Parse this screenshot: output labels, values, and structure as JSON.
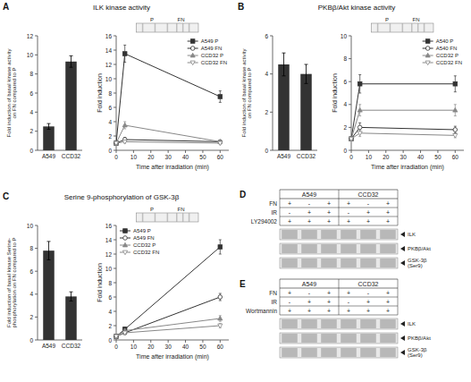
{
  "chart_data": [
    {
      "type": "bar",
      "title": "ILK kinase activity",
      "annotations": [
        "A"
      ],
      "categories": [
        "A549",
        "CCD32"
      ],
      "values": [
        2.5,
        9.3
      ],
      "errors": [
        0.3,
        0.6
      ],
      "color": "#333333",
      "ylabel": "Fold induction of basal kinase activity\non FN compared to P",
      "ylim": [
        0,
        12
      ],
      "yticks": [
        0,
        2,
        4,
        6,
        8,
        10,
        12
      ]
    },
    {
      "type": "line",
      "xlabel": "Time after irradiation (min)",
      "ylabel": "Fold induction",
      "annotations": [
        "P",
        "FN"
      ],
      "x": [
        0,
        5,
        60
      ],
      "xlim": [
        0,
        65
      ],
      "xticks": [
        0,
        10,
        20,
        30,
        40,
        50,
        60
      ],
      "ylim": [
        0,
        16
      ],
      "yticks": [
        0,
        2,
        4,
        6,
        8,
        10,
        12,
        14,
        16
      ],
      "legend": "upper right",
      "series": [
        {
          "name": "A549 P",
          "color": "#333333",
          "marker": "square",
          "line_style": "solid",
          "values": [
            1.0,
            13.5,
            7.5
          ],
          "errors": [
            0.0,
            1.2,
            0.8
          ]
        },
        {
          "name": "A549 FN",
          "color": "#333333",
          "marker": "open-circle",
          "line_style": "solid",
          "values": [
            1.0,
            1.5,
            1.2
          ],
          "errors": [
            0.0,
            0.3,
            0.2
          ]
        },
        {
          "name": "CCD32 P",
          "color": "#888888",
          "marker": "triangle-up",
          "line_style": "solid",
          "values": [
            1.0,
            3.5,
            1.2
          ],
          "errors": [
            0.0,
            0.5,
            0.2
          ]
        },
        {
          "name": "CCD32 FN",
          "color": "#888888",
          "marker": "open-triangle-down",
          "line_style": "solid",
          "values": [
            1.0,
            1.2,
            1.0
          ],
          "errors": [
            0.0,
            0.2,
            0.2
          ]
        }
      ]
    },
    {
      "type": "bar",
      "title": "PKBβ/Akt kinase activity",
      "annotations": [
        "B"
      ],
      "categories": [
        "A549",
        "CCD32"
      ],
      "values": [
        4.5,
        4.0
      ],
      "errors": [
        0.6,
        0.5
      ],
      "color": "#333333",
      "ylabel": "Fold induction of basal kinase activity\non FN compared to P",
      "ylim": [
        0,
        6
      ],
      "yticks": [
        0,
        2,
        4,
        6
      ]
    },
    {
      "type": "line",
      "xlabel": "Time after irradiation (min)",
      "ylabel": "Fold induction",
      "annotations": [
        "P",
        "FN"
      ],
      "x": [
        0,
        5,
        60
      ],
      "xlim": [
        0,
        65
      ],
      "xticks": [
        0,
        10,
        20,
        30,
        40,
        50,
        60
      ],
      "ylim": [
        0,
        10
      ],
      "yticks": [
        0,
        2,
        4,
        6,
        8,
        10
      ],
      "legend": "upper right",
      "series": [
        {
          "name": "A540 P",
          "color": "#333333",
          "marker": "square",
          "line_style": "solid",
          "values": [
            1.0,
            5.8,
            5.8
          ],
          "errors": [
            0.0,
            0.8,
            0.7
          ]
        },
        {
          "name": "A540 FN",
          "color": "#333333",
          "marker": "open-circle",
          "line_style": "solid",
          "values": [
            1.0,
            2.0,
            1.8
          ],
          "errors": [
            0.0,
            0.4,
            0.3
          ]
        },
        {
          "name": "CCD32 P",
          "color": "#888888",
          "marker": "triangle-up",
          "line_style": "solid",
          "values": [
            1.0,
            3.5,
            3.5
          ],
          "errors": [
            0.0,
            0.5,
            0.5
          ]
        },
        {
          "name": "CCD32 FN",
          "color": "#888888",
          "marker": "open-triangle-down",
          "line_style": "solid",
          "values": [
            1.0,
            1.5,
            1.3
          ],
          "errors": [
            0.0,
            0.3,
            0.2
          ]
        }
      ]
    },
    {
      "type": "bar",
      "title": "Serine 9-phosphorylation of GSK-3β",
      "annotations": [
        "C"
      ],
      "categories": [
        "A549",
        "CCD32"
      ],
      "values": [
        7.8,
        3.8
      ],
      "errors": [
        0.8,
        0.4
      ],
      "color": "#333333",
      "ylabel": "Fold induction of basal kinase Serine-\nphosphorylation on FN compared to P",
      "ylim": [
        0,
        10
      ],
      "yticks": [
        0,
        2,
        4,
        6,
        8,
        10
      ]
    },
    {
      "type": "line",
      "xlabel": "Time after irradiation (min)",
      "ylabel": "Fold induction",
      "annotations": [
        "P",
        "FN"
      ],
      "x": [
        0,
        5,
        60
      ],
      "xlim": [
        0,
        65
      ],
      "xticks": [
        0,
        10,
        20,
        30,
        40,
        50,
        60
      ],
      "ylim": [
        0,
        16
      ],
      "yticks": [
        0,
        2,
        4,
        6,
        8,
        10,
        12,
        14,
        16
      ],
      "legend": "upper left",
      "series": [
        {
          "name": "A549 P",
          "color": "#333333",
          "marker": "square",
          "line_style": "solid",
          "values": [
            0.5,
            1.5,
            13.0
          ],
          "errors": [
            0.0,
            0.3,
            1.0
          ]
        },
        {
          "name": "A549 FN",
          "color": "#333333",
          "marker": "open-circle",
          "line_style": "solid",
          "values": [
            0.5,
            1.0,
            6.0
          ],
          "errors": [
            0.0,
            0.2,
            0.5
          ]
        },
        {
          "name": "CCD32 P",
          "color": "#888888",
          "marker": "triangle-up",
          "line_style": "solid",
          "values": [
            0.5,
            1.3,
            3.0
          ],
          "errors": [
            0.0,
            0.2,
            0.4
          ]
        },
        {
          "name": "CCD32 FN",
          "color": "#888888",
          "marker": "open-triangle-down",
          "line_style": "solid",
          "values": [
            0.5,
            1.0,
            2.0
          ],
          "errors": [
            0.0,
            0.2,
            0.3
          ]
        }
      ]
    },
    {
      "type": "table",
      "annotations": [
        "D"
      ],
      "column_groups": [
        "A549",
        "CCD32"
      ],
      "rows": [
        "FN",
        "IR",
        "LY294002"
      ],
      "cells": [
        [
          "+",
          "-",
          "+",
          "+",
          "-",
          "+"
        ],
        [
          "-",
          "+",
          "+",
          "-",
          "+",
          "+"
        ],
        [
          "+",
          "+",
          "+",
          "+",
          "+",
          "+"
        ]
      ],
      "blot_labels": [
        "ILK",
        "PKBβ/Akt",
        "GSK-3β\n(Ser9)"
      ]
    },
    {
      "type": "table",
      "annotations": [
        "E"
      ],
      "column_groups": [
        "A549",
        "CCD32"
      ],
      "rows": [
        "FN",
        "IR",
        "Wortmannin"
      ],
      "cells": [
        [
          "+",
          "-",
          "+",
          "+",
          "-",
          "+"
        ],
        [
          "-",
          "+",
          "+",
          "-",
          "+",
          "+"
        ],
        [
          "+",
          "+",
          "+",
          "+",
          "+",
          "+"
        ]
      ],
      "blot_labels": [
        "ILK",
        "PKBβ/Akt",
        "GSK-3β\n(Ser9)"
      ]
    }
  ]
}
